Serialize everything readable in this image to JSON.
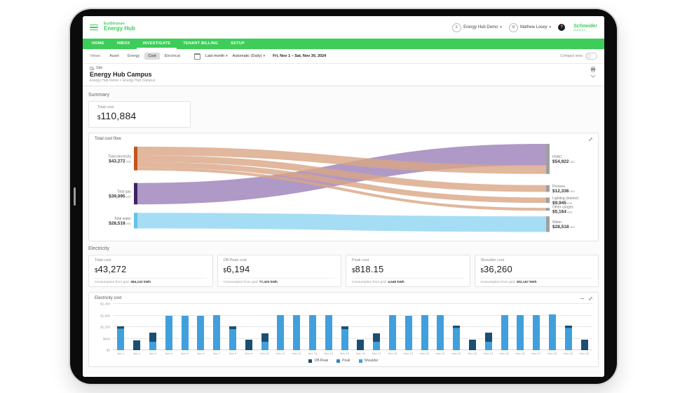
{
  "header": {
    "product_line1": "EcoStruxure",
    "product_line2": "Energy Hub",
    "org": {
      "initial": "E",
      "label": "Energy Hub Demo"
    },
    "user": {
      "initial": "M",
      "label": "Mathew Losey"
    },
    "help_glyph": "?",
    "brand": {
      "line1": "Schneider",
      "line2": "Electric"
    }
  },
  "nav": {
    "tabs": [
      {
        "label": "HOME",
        "active": false
      },
      {
        "label": "INBOX",
        "active": false
      },
      {
        "label": "INVESTIGATE",
        "active": true
      },
      {
        "label": "TENANT BILLING",
        "active": false
      },
      {
        "label": "SETUP",
        "active": false
      }
    ]
  },
  "filters": {
    "views_label": "Views:",
    "view_tabs": [
      {
        "label": "Asset",
        "active": false
      },
      {
        "label": "Energy",
        "active": false
      },
      {
        "label": "Cost",
        "active": true
      },
      {
        "label": "Electrical",
        "active": false
      }
    ],
    "period": "Last month",
    "granularity": "Automatic (Daily)",
    "date_range": "Fri, Nov 1 – Sat, Nov 30, 2024",
    "compact_label": "Compact view:",
    "compact_on": false
  },
  "site": {
    "type_label": "Site",
    "title": "Energy Hub Campus",
    "breadcrumb": "Energy Hub Demo > Energy Hub Campus"
  },
  "summary": {
    "heading": "Summary",
    "total_label": "Total cost",
    "currency": "$",
    "total_value": "110,884"
  },
  "sections": {
    "electricity_heading": "Electricity"
  },
  "stat_cards": [
    {
      "label": "Total cost",
      "currency": "$",
      "value": "43,272",
      "sub_label": "Consumption from grid:",
      "sub_value": "384,132 kWh"
    },
    {
      "label": "Off-Peak cost",
      "currency": "$",
      "value": "6,194",
      "sub_label": "Consumption from grid:",
      "sub_value": "77,420 kWh"
    },
    {
      "label": "Peak cost",
      "currency": "$",
      "value": "818.15",
      "sub_label": "Consumption from grid:",
      "sub_value": "4,545 kWh"
    },
    {
      "label": "Shoulder cost",
      "currency": "$",
      "value": "36,260",
      "sub_label": "Consumption from grid:",
      "sub_value": "302,167 kWh"
    }
  ],
  "chart_data": [
    {
      "type": "sankey",
      "title": "Total cost flow",
      "unit": "USD",
      "sources": [
        {
          "label": "Total electricity",
          "display": "$43,272",
          "value": 43272,
          "node_color": "#c0571c",
          "flow_color": "#d9a585"
        },
        {
          "label": "Total gas",
          "display": "$39,095",
          "value": 39095,
          "node_color": "#3f2366",
          "flow_color": "#9b7fb8"
        },
        {
          "label": "Total water",
          "display": "$28,518",
          "value": 28518,
          "node_color": "#62c4ea",
          "flow_color": "#8ed5f2"
        }
      ],
      "targets": [
        {
          "label": "HVAC",
          "display": "$54,922",
          "value": 54922
        },
        {
          "label": "Process",
          "display": "$12,336",
          "value": 12336
        },
        {
          "label": "Lighting (interior)",
          "display": "$9,945",
          "value": 9945
        },
        {
          "label": "Other usages",
          "display": "$5,164",
          "value": 5164
        },
        {
          "label": "Water",
          "display": "$28,518",
          "value": 28518
        }
      ],
      "links": [
        {
          "source": 0,
          "target": 0,
          "value": 15827
        },
        {
          "source": 0,
          "target": 1,
          "value": 12336
        },
        {
          "source": 0,
          "target": 2,
          "value": 9945
        },
        {
          "source": 0,
          "target": 3,
          "value": 5164
        },
        {
          "source": 1,
          "target": 0,
          "value": 39095
        },
        {
          "source": 2,
          "target": 4,
          "value": 28518
        }
      ],
      "target_node_color": "#a0a0a0"
    },
    {
      "type": "bar",
      "stacked": true,
      "title": "Electricity cost",
      "categories": [
        "Nov 1",
        "Nov 2",
        "Nov 3",
        "Nov 4",
        "Nov 5",
        "Nov 6",
        "Nov 7",
        "Nov 8",
        "Nov 9",
        "Nov 10",
        "Nov 11",
        "Nov 12",
        "Nov 13",
        "Nov 14",
        "Nov 15",
        "Nov 16",
        "Nov 17",
        "Nov 18",
        "Nov 19",
        "Nov 20",
        "Nov 21",
        "Nov 22",
        "Nov 23",
        "Nov 24",
        "Nov 25",
        "Nov 26",
        "Nov 27",
        "Nov 28",
        "Nov 29",
        "Nov 30"
      ],
      "series": [
        {
          "name": "Off-Peak",
          "color": "#1b4f72",
          "values": [
            120,
            520,
            450,
            0,
            0,
            0,
            0,
            130,
            540,
            450,
            0,
            0,
            0,
            0,
            130,
            560,
            440,
            0,
            0,
            0,
            0,
            110,
            550,
            460,
            0,
            0,
            0,
            0,
            120,
            550
          ]
        },
        {
          "name": "Peak",
          "color": "#2e86c1",
          "values": [
            30,
            0,
            0,
            0,
            0,
            0,
            0,
            25,
            0,
            0,
            0,
            0,
            0,
            0,
            25,
            0,
            0,
            0,
            0,
            0,
            0,
            30,
            0,
            0,
            0,
            0,
            0,
            0,
            30,
            0
          ]
        },
        {
          "name": "Shoulder",
          "color": "#41a0dc",
          "values": [
            1100,
            0,
            450,
            1800,
            1800,
            1800,
            1820,
            1080,
            0,
            430,
            1820,
            1810,
            1810,
            1820,
            1080,
            0,
            440,
            1820,
            1800,
            1810,
            1820,
            1120,
            0,
            450,
            1830,
            1810,
            1820,
            1840,
            1120,
            0
          ]
        }
      ],
      "ylim": [
        0,
        2400
      ],
      "yticks": [
        "$0",
        "$600",
        "$1,200",
        "$1,800",
        "$2,400"
      ],
      "grid": true,
      "legend_position": "bottom"
    }
  ],
  "colors": {
    "brand_green": "#3dcd58",
    "off_peak": "#1b4f72",
    "peak": "#2e86c1",
    "shoulder": "#41a0dc",
    "sankey_target_node": "#a0a0a0"
  }
}
